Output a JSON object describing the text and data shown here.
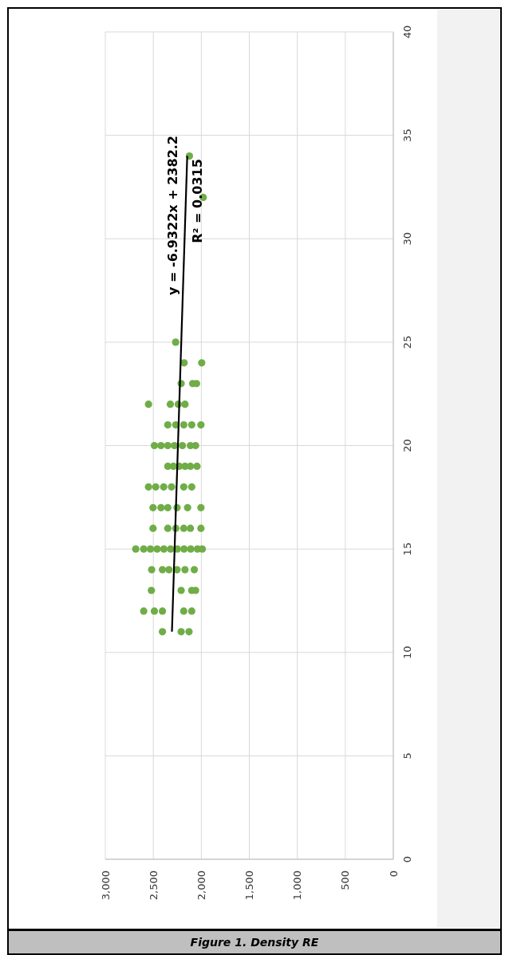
{
  "chart_data": {
    "type": "scatter",
    "title": "Figure 1. Density RE",
    "xlim": [
      3000,
      0
    ],
    "xticks": [
      {
        "value": 3000,
        "label": "3,000"
      },
      {
        "value": 2500,
        "label": "2,500"
      },
      {
        "value": 2000,
        "label": "2,000"
      },
      {
        "value": 1500,
        "label": "1,500"
      },
      {
        "value": 1000,
        "label": "1,000"
      },
      {
        "value": 500,
        "label": "500"
      },
      {
        "value": 0,
        "label": "0"
      }
    ],
    "ylim": [
      0,
      40
    ],
    "yticks": [
      0,
      5,
      10,
      15,
      20,
      25,
      30,
      35,
      40
    ],
    "grid": true,
    "marker": "circle",
    "series": [
      {
        "color": "#70ad47",
        "values": [
          34,
          32,
          25,
          24,
          24,
          23,
          23,
          23,
          22,
          22,
          22,
          22,
          21,
          21,
          21,
          21,
          21,
          20,
          20,
          20,
          20,
          20,
          20,
          20,
          19,
          19,
          19,
          19,
          19,
          19,
          18,
          18,
          18,
          18,
          18,
          18,
          17,
          17,
          17,
          17,
          17,
          17,
          16,
          16,
          16,
          16,
          16,
          16,
          15,
          15,
          15,
          15,
          15,
          15,
          15,
          15,
          15,
          15,
          15,
          14,
          14,
          14,
          14,
          14,
          14,
          13,
          13,
          13,
          13,
          12,
          12,
          12,
          12,
          12,
          11,
          11,
          11
        ],
        "x": [
          2124,
          1980,
          2267,
          2179,
          1996,
          2210,
          2090,
          2050,
          2550,
          2323,
          2240,
          2170,
          2349,
          2266,
          2183,
          2100,
          2004,
          2489,
          2420,
          2349,
          2280,
          2197,
          2114,
          2060,
          2349,
          2290,
          2230,
          2170,
          2114,
          2045,
          2550,
          2475,
          2392,
          2310,
          2183,
          2100,
          2503,
          2420,
          2349,
          2253,
          2143,
          2004,
          2503,
          2349,
          2266,
          2183,
          2114,
          2004,
          2683,
          2600,
          2530,
          2460,
          2390,
          2320,
          2250,
          2180,
          2110,
          2040,
          1990,
          2517,
          2405,
          2337,
          2253,
          2170,
          2073,
          2520,
          2210,
          2100,
          2060,
          2600,
          2489,
          2405,
          2183,
          2100,
          2405,
          2210,
          2128
        ]
      },
      {
        "type": "line",
        "color": "#000000",
        "marker": "none",
        "x": [
          2305.9,
          2146.5
        ],
        "values": [
          11,
          34
        ]
      }
    ],
    "annotations": [
      "y = -6.9322x + 2382.2",
      "R² = 0.0315"
    ]
  }
}
